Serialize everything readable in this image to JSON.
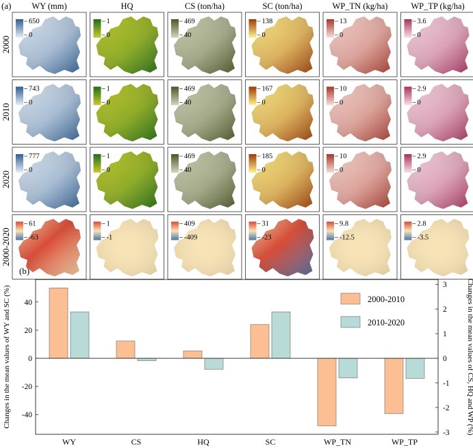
{
  "figure": {
    "panel_a_label": "(a)",
    "panel_b_label": "(b)"
  },
  "map_grid": {
    "columns": [
      {
        "header": "WY (mm)",
        "palette": [
          "#e7eef6",
          "#2f5f93"
        ]
      },
      {
        "header": "HQ",
        "palette": [
          "#c9cc2a",
          "#1f6d1b"
        ]
      },
      {
        "header": "CS (ton/ha)",
        "palette": [
          "#d2d6bb",
          "#4c5628"
        ]
      },
      {
        "header": "SC (ton/ha)",
        "palette": [
          "#fff38a",
          "#9c3a09"
        ]
      },
      {
        "header": "WP_TN (kg/ha)",
        "palette": [
          "#f8dcd5",
          "#a8392d"
        ]
      },
      {
        "header": "WP_TP (kg/ha)",
        "palette": [
          "#f8dfe8",
          "#a8325e"
        ]
      }
    ],
    "rows": [
      {
        "label": "2000",
        "legends": [
          {
            "max": "650",
            "min": "0"
          },
          {
            "max": "1",
            "min": "0"
          },
          {
            "max": "469",
            "min": "40"
          },
          {
            "max": "138",
            "min": "0"
          },
          {
            "max": "13",
            "min": "0"
          },
          {
            "max": "3.6",
            "min": "0"
          }
        ]
      },
      {
        "label": "2010",
        "legends": [
          {
            "max": "743",
            "min": "0"
          },
          {
            "max": "1",
            "min": "0"
          },
          {
            "max": "469",
            "min": "40"
          },
          {
            "max": "167",
            "min": "0"
          },
          {
            "max": "10",
            "min": "0"
          },
          {
            "max": "2.9",
            "min": "0"
          }
        ]
      },
      {
        "label": "2020",
        "legends": [
          {
            "max": "777",
            "min": "0"
          },
          {
            "max": "1",
            "min": "0"
          },
          {
            "max": "469",
            "min": "40"
          },
          {
            "max": "185",
            "min": "0"
          },
          {
            "max": "10",
            "min": "0"
          },
          {
            "max": "2.9",
            "min": "0"
          }
        ]
      },
      {
        "label": "2000-2020",
        "diverging": true,
        "legends": [
          {
            "max": "61",
            "min": "-63"
          },
          {
            "max": "1",
            "min": "-1"
          },
          {
            "max": "409",
            "min": "-409"
          },
          {
            "max": "31",
            "min": "-23"
          },
          {
            "max": "9.8",
            "min": "-12.5"
          },
          {
            "max": "2.8",
            "min": "-3.5"
          }
        ]
      }
    ],
    "diverging_palette": [
      "#d84a35",
      "#f8e3b5",
      "#4a78ae"
    ]
  },
  "chart_data": {
    "type": "bar",
    "categories": [
      "WY",
      "CS",
      "HQ",
      "SC",
      "WP_TN",
      "WP_TP"
    ],
    "series": [
      {
        "name": "2000-2010",
        "color": "#fbbf93",
        "values": [
          50,
          0.7,
          0.3,
          24,
          -2.75,
          -2.25
        ]
      },
      {
        "name": "2010-2020",
        "color": "#b9dbd8",
        "values": [
          33,
          -0.1,
          -0.45,
          33,
          -0.8,
          -0.82
        ]
      }
    ],
    "axis_assignment": [
      "left",
      "right",
      "right",
      "left",
      "right",
      "right"
    ],
    "left_axis": {
      "label": "Changes in the mean values of WY and SC (%)",
      "ylim": [
        -54,
        56
      ],
      "ticks": [
        "-40",
        "-20",
        "0",
        "20",
        "40"
      ]
    },
    "right_axis": {
      "label": "Changes in the mean values of CS, HQ and WP (%)",
      "ylim": [
        -3.09,
        3.2
      ],
      "ticks": [
        "-3",
        "-2",
        "-1",
        "0",
        "1",
        "2",
        "3"
      ]
    },
    "legend_position": "top-right",
    "zero_line": true
  }
}
